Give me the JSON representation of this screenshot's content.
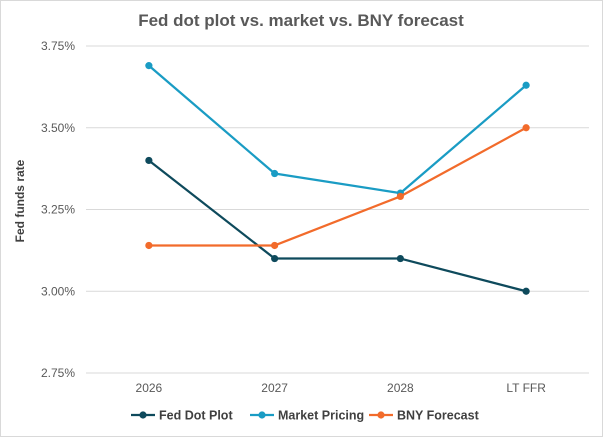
{
  "chart_data": {
    "type": "line",
    "title": "Fed dot plot vs. market vs. BNY forecast",
    "xlabel": "",
    "ylabel": "Fed funds rate",
    "categories": [
      "2026",
      "2027",
      "2028",
      "LT FFR"
    ],
    "y_ticks": [
      "2.75%",
      "3.00%",
      "3.25%",
      "3.50%",
      "3.75%"
    ],
    "y_tick_values": [
      2.75,
      3.0,
      3.25,
      3.5,
      3.75
    ],
    "ylim": [
      2.75,
      3.75
    ],
    "grid": true,
    "legend_position": "bottom",
    "series": [
      {
        "name": "Fed Dot Plot",
        "color": "#0e4a5c",
        "values": [
          3.4,
          3.1,
          3.1,
          3.0
        ]
      },
      {
        "name": "Market Pricing",
        "color": "#1a9cc4",
        "values": [
          3.69,
          3.36,
          3.3,
          3.63
        ]
      },
      {
        "name": "BNY Forecast",
        "color": "#f26b2b",
        "values": [
          3.14,
          3.14,
          3.29,
          3.5
        ]
      }
    ]
  }
}
